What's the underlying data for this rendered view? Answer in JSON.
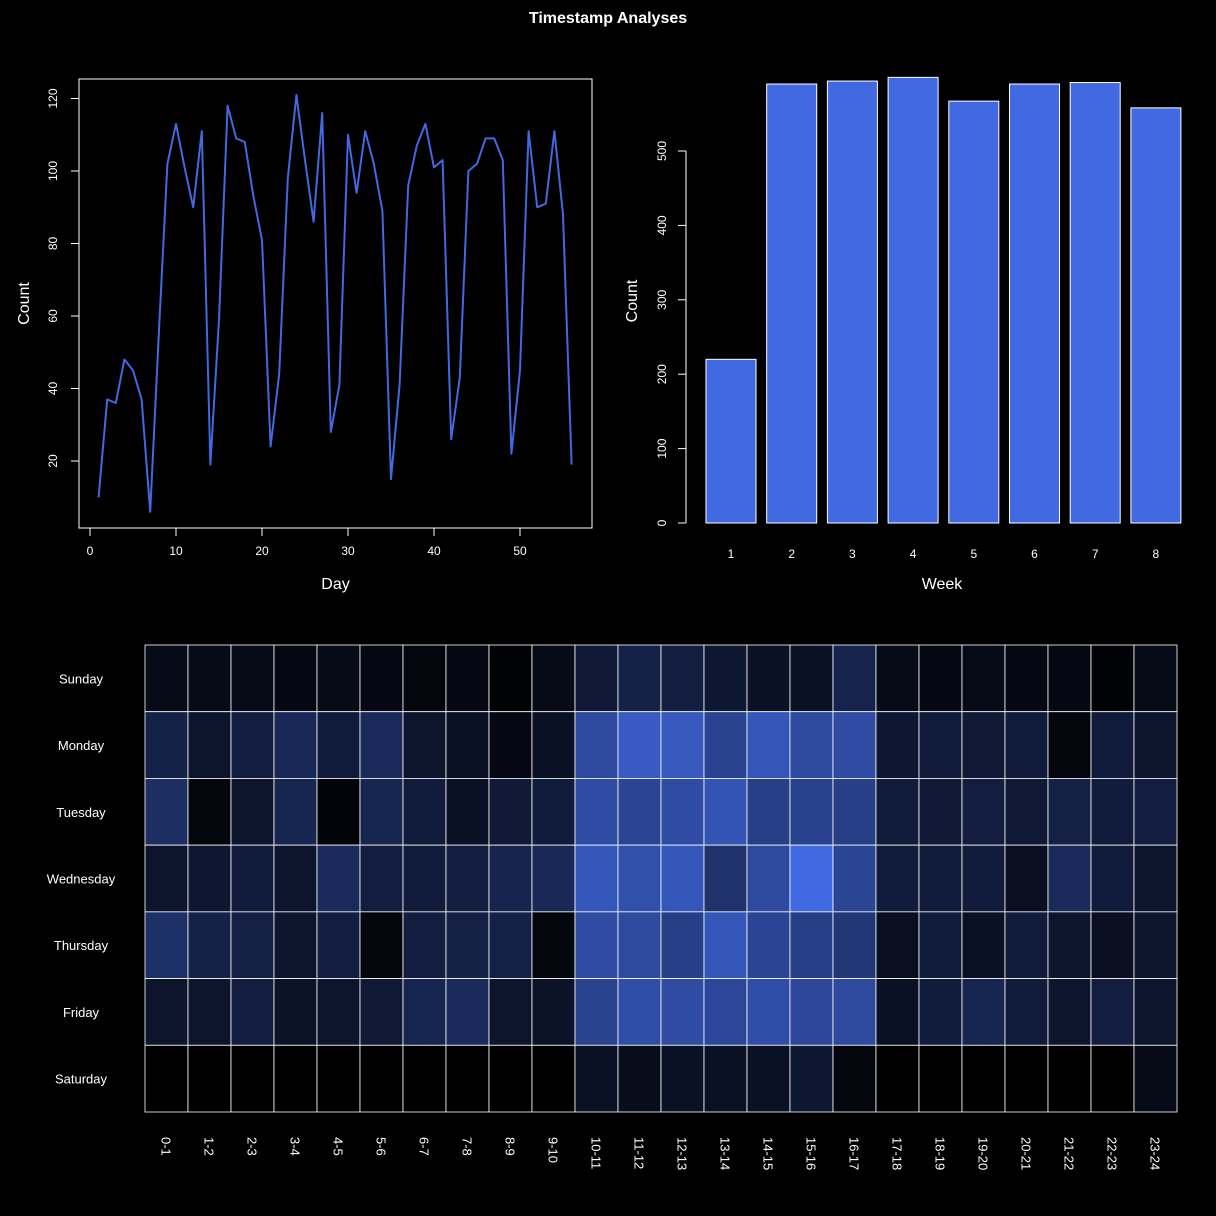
{
  "title": "Timestamp Analyses",
  "colors": {
    "background": "#000000",
    "foreground": "#ffffff",
    "accent": "#4169e1"
  },
  "chart_data": [
    {
      "type": "line",
      "xlabel": "Day",
      "ylabel": "Count",
      "xlim": [
        0,
        57
      ],
      "ylim": [
        5,
        122
      ],
      "xticks": [
        "0",
        "10",
        "20",
        "30",
        "40",
        "50"
      ],
      "yticks": [
        "20",
        "40",
        "60",
        "80",
        "100",
        "120"
      ],
      "grid": false,
      "x": [
        1,
        2,
        3,
        4,
        5,
        6,
        7,
        8,
        9,
        10,
        11,
        12,
        13,
        14,
        15,
        16,
        17,
        18,
        19,
        20,
        21,
        22,
        23,
        24,
        25,
        26,
        27,
        28,
        29,
        30,
        31,
        32,
        33,
        34,
        35,
        36,
        37,
        38,
        39,
        40,
        41,
        42,
        43,
        44,
        45,
        46,
        47,
        48,
        49,
        50,
        51,
        52,
        53,
        54,
        55,
        56
      ],
      "values": [
        10,
        37,
        36,
        48,
        45,
        37,
        6,
        55,
        102,
        113,
        101,
        90,
        111,
        19,
        59,
        118,
        109,
        108,
        93,
        81,
        24,
        44,
        98,
        121,
        103,
        86,
        116,
        28,
        41,
        110,
        94,
        111,
        102,
        89,
        15,
        41,
        96,
        107,
        113,
        101,
        103,
        26,
        43,
        100,
        102,
        109,
        109,
        103,
        22,
        45,
        111,
        90,
        91,
        111,
        88,
        19
      ]
    },
    {
      "type": "bar",
      "xlabel": "Week",
      "ylabel": "Count",
      "ylim": [
        0,
        600
      ],
      "yticks": [
        "0",
        "100",
        "200",
        "300",
        "400",
        "500"
      ],
      "categories": [
        "1",
        "2",
        "3",
        "4",
        "5",
        "6",
        "7",
        "8"
      ],
      "values": [
        220,
        590,
        594,
        599,
        567,
        590,
        592,
        558
      ],
      "grid": false
    },
    {
      "type": "heatmap",
      "rows": [
        "Sunday",
        "Monday",
        "Tuesday",
        "Wednesday",
        "Thursday",
        "Friday",
        "Saturday"
      ],
      "columns": [
        "0-1",
        "1-2",
        "2-3",
        "3-4",
        "4-5",
        "5-6",
        "6-7",
        "7-8",
        "8-9",
        "9-10",
        "10-11",
        "11-12",
        "12-13",
        "13-14",
        "14-15",
        "15-16",
        "16-17",
        "17-18",
        "18-19",
        "19-20",
        "20-21",
        "21-22",
        "22-23",
        "23-24"
      ],
      "values": [
        [
          0.1,
          0.1,
          0.1,
          0.08,
          0.1,
          0.08,
          0.06,
          0.08,
          0.02,
          0.1,
          0.24,
          0.32,
          0.28,
          0.22,
          0.16,
          0.16,
          0.34,
          0.1,
          0.08,
          0.1,
          0.08,
          0.08,
          0.02,
          0.1
        ],
        [
          0.32,
          0.2,
          0.28,
          0.38,
          0.26,
          0.4,
          0.2,
          0.16,
          0.08,
          0.16,
          0.7,
          0.86,
          0.84,
          0.64,
          0.82,
          0.7,
          0.72,
          0.22,
          0.26,
          0.24,
          0.26,
          0.06,
          0.26,
          0.2
        ],
        [
          0.44,
          0.06,
          0.2,
          0.36,
          0.04,
          0.36,
          0.26,
          0.16,
          0.24,
          0.26,
          0.72,
          0.66,
          0.72,
          0.8,
          0.6,
          0.62,
          0.6,
          0.26,
          0.24,
          0.28,
          0.24,
          0.3,
          0.26,
          0.28
        ],
        [
          0.2,
          0.22,
          0.26,
          0.2,
          0.4,
          0.28,
          0.26,
          0.28,
          0.34,
          0.38,
          0.82,
          0.76,
          0.82,
          0.48,
          0.7,
          1.0,
          0.66,
          0.26,
          0.26,
          0.26,
          0.14,
          0.4,
          0.26,
          0.2
        ],
        [
          0.46,
          0.32,
          0.3,
          0.2,
          0.28,
          0.06,
          0.28,
          0.3,
          0.32,
          0.06,
          0.72,
          0.7,
          0.6,
          0.82,
          0.66,
          0.6,
          0.52,
          0.14,
          0.26,
          0.16,
          0.26,
          0.2,
          0.14,
          0.2
        ],
        [
          0.2,
          0.2,
          0.28,
          0.18,
          0.2,
          0.24,
          0.36,
          0.4,
          0.2,
          0.18,
          0.64,
          0.74,
          0.72,
          0.68,
          0.74,
          0.68,
          0.7,
          0.16,
          0.26,
          0.36,
          0.26,
          0.2,
          0.28,
          0.2
        ],
        [
          0.0,
          0.0,
          0.0,
          0.0,
          0.0,
          0.0,
          0.0,
          0.0,
          0.0,
          0.0,
          0.16,
          0.12,
          0.16,
          0.16,
          0.16,
          0.22,
          0.06,
          0.0,
          0.0,
          0.0,
          0.0,
          0.0,
          0.0,
          0.1
        ]
      ]
    }
  ]
}
